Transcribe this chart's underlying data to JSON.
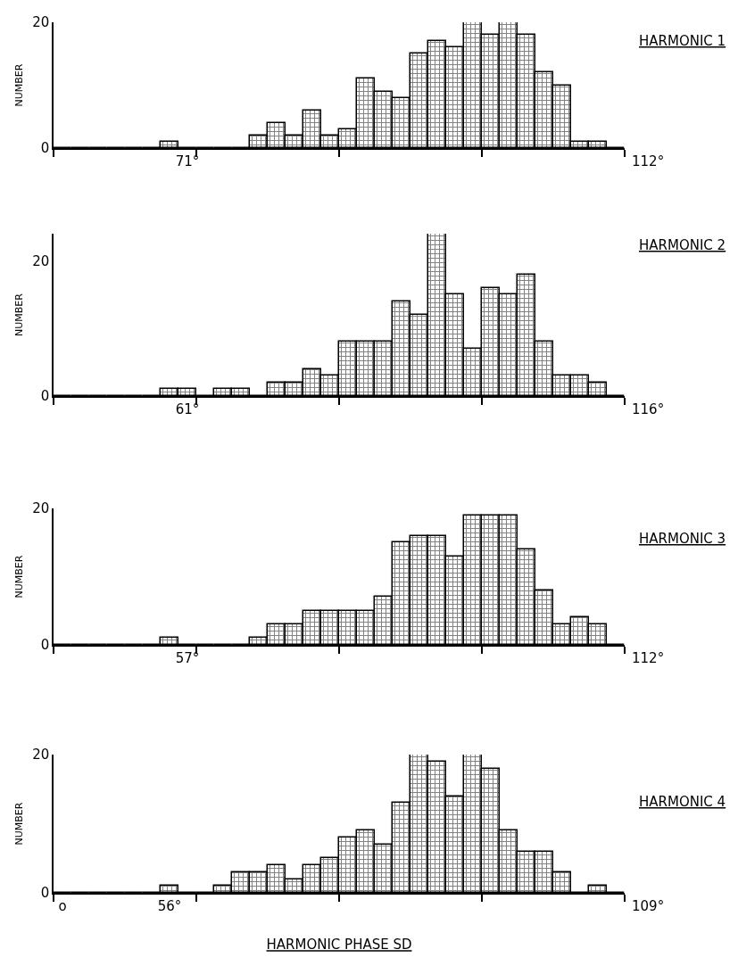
{
  "chart_data": [
    {
      "type": "bar",
      "ylabel": "NUMBER",
      "color": "#000000",
      "annotations": [
        "112°",
        "HARMONIC 1"
      ],
      "categories": [
        null,
        null,
        null,
        null,
        null,
        null,
        null,
        "71°",
        null,
        null,
        null,
        null,
        null,
        null,
        null,
        null,
        null,
        null,
        null,
        null,
        null,
        null,
        null,
        null,
        null,
        null,
        null,
        null,
        null,
        null,
        null,
        null
      ],
      "values": [
        0,
        0,
        0,
        0,
        0,
        0,
        1,
        0,
        0,
        0,
        0,
        2,
        4,
        2,
        6,
        2,
        3,
        11,
        9,
        8,
        15,
        17,
        16,
        20,
        18,
        20,
        18,
        12,
        10,
        1,
        1,
        0
      ],
      "ylim": [
        0,
        20
      ],
      "yticks": [
        0,
        20
      ]
    },
    {
      "type": "bar",
      "ylabel": "NUMBER",
      "color": "#000000",
      "annotations": [
        "116°",
        "HARMONIC 2"
      ],
      "categories": [
        null,
        null,
        null,
        null,
        null,
        null,
        null,
        "61°",
        null,
        null,
        null,
        null,
        null,
        null,
        null,
        null,
        null,
        null,
        null,
        null,
        null,
        null,
        null,
        null,
        null,
        null,
        null,
        null,
        null,
        null,
        null,
        null
      ],
      "values": [
        0,
        0,
        0,
        0,
        0,
        0,
        1,
        1,
        0,
        1,
        1,
        0,
        2,
        2,
        4,
        3,
        8,
        8,
        8,
        14,
        12,
        24,
        15,
        7,
        16,
        15,
        18,
        8,
        3,
        3,
        2,
        0
      ],
      "ylim": [
        0,
        24
      ],
      "yticks": [
        0,
        20
      ]
    },
    {
      "type": "bar",
      "ylabel": "NUMBER",
      "color": "#000000",
      "annotations": [
        "112°",
        "HARMONIC 3"
      ],
      "categories": [
        null,
        null,
        null,
        null,
        null,
        null,
        null,
        "57°",
        null,
        null,
        null,
        null,
        null,
        null,
        null,
        null,
        null,
        null,
        null,
        null,
        null,
        null,
        null,
        null,
        null,
        null,
        null,
        null,
        null,
        null,
        null,
        null
      ],
      "values": [
        0,
        0,
        0,
        0,
        0,
        0,
        1,
        0,
        0,
        0,
        0,
        1,
        3,
        3,
        5,
        5,
        5,
        5,
        7,
        15,
        16,
        16,
        13,
        19,
        19,
        19,
        14,
        8,
        3,
        4,
        3,
        0
      ],
      "ylim": [
        0,
        20
      ],
      "yticks": [
        0,
        20
      ]
    },
    {
      "type": "bar",
      "ylabel": "NUMBER",
      "xlabel": "HARMONIC PHASE SD",
      "color": "#000000",
      "annotations": [
        "109°",
        "HARMONIC 4"
      ],
      "categories": [
        "o",
        null,
        null,
        null,
        null,
        null,
        "56°",
        null,
        null,
        null,
        null,
        null,
        null,
        null,
        null,
        null,
        null,
        null,
        null,
        null,
        null,
        null,
        null,
        null,
        null,
        null,
        null,
        null,
        null,
        null,
        null,
        null
      ],
      "values": [
        0,
        0,
        0,
        0,
        0,
        0,
        1,
        0,
        0,
        1,
        3,
        3,
        4,
        2,
        4,
        5,
        8,
        9,
        7,
        13,
        20,
        19,
        14,
        20,
        18,
        9,
        6,
        6,
        3,
        0,
        1,
        0
      ],
      "ylim": [
        0,
        20
      ],
      "yticks": [
        0,
        20
      ]
    }
  ]
}
